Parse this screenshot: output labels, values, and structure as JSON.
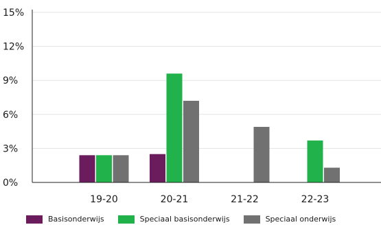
{
  "chart_data": {
    "type": "bar",
    "categories": [
      "19-20",
      "20-21",
      "21-22",
      "22-23"
    ],
    "series": [
      {
        "name": "Basisonderwijs",
        "color": "#6b1c5c",
        "values": [
          2.4,
          2.5,
          0,
          0
        ]
      },
      {
        "name": "Speciaal basisonderwijs",
        "color": "#22b24c",
        "values": [
          2.4,
          9.6,
          0,
          3.7
        ]
      },
      {
        "name": "Speciaal onderwijs",
        "color": "#717171",
        "values": [
          2.4,
          7.2,
          4.9,
          1.3
        ]
      }
    ],
    "yticks": [
      "0%",
      "3%",
      "6%",
      "9%",
      "12%",
      "15%"
    ],
    "ylim": [
      0,
      15
    ],
    "grid": true,
    "legend_position": "bottom",
    "title": "",
    "xlabel": "",
    "ylabel": ""
  }
}
